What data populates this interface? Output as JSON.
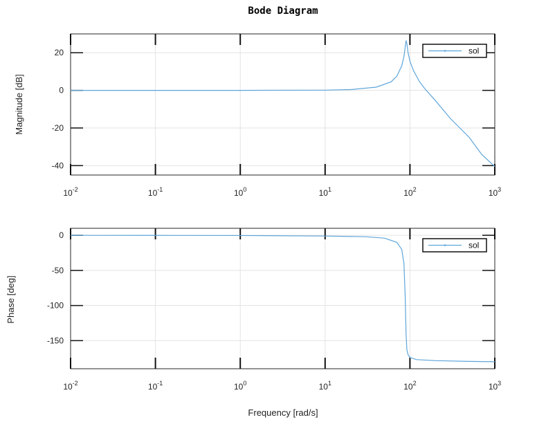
{
  "chart_data": [
    {
      "type": "line",
      "title": "Bode Diagram",
      "xlabel": "",
      "ylabel": "Magnitude [dB]",
      "xscale": "log",
      "xlim": [
        0.01,
        1000
      ],
      "ylim": [
        -45,
        30
      ],
      "xticks": [
        0.01,
        0.1,
        1,
        10,
        100,
        1000
      ],
      "xtick_labels": [
        {
          "base": "10",
          "exp": "-2"
        },
        {
          "base": "10",
          "exp": "-1"
        },
        {
          "base": "10",
          "exp": "0"
        },
        {
          "base": "10",
          "exp": "1"
        },
        {
          "base": "10",
          "exp": "2"
        },
        {
          "base": "10",
          "exp": "3"
        }
      ],
      "yticks": [
        20,
        0,
        -20,
        -40
      ],
      "ytick_labels": [
        "20",
        "0",
        "-20",
        "-40"
      ],
      "grid": true,
      "legend_position": "top-right",
      "series": [
        {
          "name": "sol",
          "color": "#5da5da",
          "x": [
            0.01,
            0.1,
            1,
            10,
            20,
            40,
            60,
            70,
            80,
            85,
            90,
            92,
            95,
            100,
            110,
            130,
            150,
            200,
            300,
            500,
            700,
            1000
          ],
          "y": [
            0,
            0,
            0,
            0.1,
            0.4,
            1.7,
            4.5,
            7.5,
            13,
            18,
            26.5,
            25,
            20,
            15.5,
            10.5,
            4.5,
            0.8,
            -5.5,
            -15,
            -25,
            -34,
            -40.5
          ]
        }
      ]
    },
    {
      "type": "line",
      "title": "",
      "xlabel": "Frequency [rad/s]",
      "ylabel": "Phase [deg]",
      "xscale": "log",
      "xlim": [
        0.01,
        1000
      ],
      "ylim": [
        -190,
        10
      ],
      "xticks": [
        0.01,
        0.1,
        1,
        10,
        100,
        1000
      ],
      "xtick_labels": [
        {
          "base": "10",
          "exp": "-2"
        },
        {
          "base": "10",
          "exp": "-1"
        },
        {
          "base": "10",
          "exp": "0"
        },
        {
          "base": "10",
          "exp": "1"
        },
        {
          "base": "10",
          "exp": "2"
        },
        {
          "base": "10",
          "exp": "3"
        }
      ],
      "yticks": [
        0,
        -50,
        -100,
        -150
      ],
      "ytick_labels": [
        "0",
        "-50",
        "-100",
        "-150"
      ],
      "grid": true,
      "legend_position": "top-right",
      "series": [
        {
          "name": "sol",
          "color": "#5da5da",
          "x": [
            0.01,
            0.1,
            1,
            10,
            30,
            50,
            70,
            80,
            85,
            88,
            90,
            92,
            95,
            100,
            120,
            200,
            500,
            1000
          ],
          "y": [
            0,
            -0.1,
            -0.3,
            -1,
            -2,
            -4,
            -10,
            -20,
            -40,
            -90,
            -140,
            -163,
            -170,
            -174,
            -177,
            -178.5,
            -179.5,
            -180
          ]
        }
      ]
    }
  ]
}
